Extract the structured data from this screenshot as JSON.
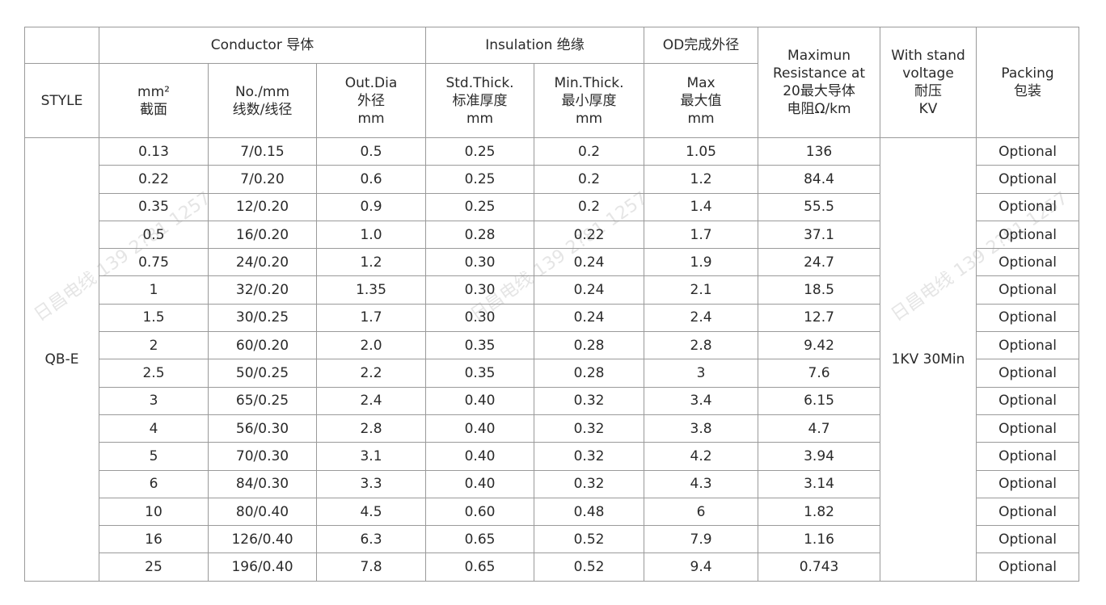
{
  "watermark": "日昌电线 139 2?81 1257",
  "header": {
    "style": "STYLE",
    "conductor": "Conductor 导体",
    "insulation": "Insulation 绝缘",
    "od": "OD完成外径",
    "resistance": "Maximun\nResistance at\n20最大导体\n电阻Ω/km",
    "voltage": "With stand\nvoltage\n耐压\nKV",
    "packing": "Packing\n包装",
    "area": "mm²\n截面",
    "strands": "No./mm\n线数/线径",
    "outdia": "Out.Dia\n外径\nmm",
    "std_thick": "Std.Thick.\n标准厚度\nmm",
    "min_thick": "Min.Thick.\n最小厚度\nmm",
    "od_max": "Max\n最大值\nmm"
  },
  "style_value": "QB-E",
  "voltage_value": "1KV 30Min",
  "rows": [
    [
      "0.13",
      "7/0.15",
      "0.5",
      "0.25",
      "0.2",
      "1.05",
      "136",
      "Optional"
    ],
    [
      "0.22",
      "7/0.20",
      "0.6",
      "0.25",
      "0.2",
      "1.2",
      "84.4",
      "Optional"
    ],
    [
      "0.35",
      "12/0.20",
      "0.9",
      "0.25",
      "0.2",
      "1.4",
      "55.5",
      "Optional"
    ],
    [
      "0.5",
      "16/0.20",
      "1.0",
      "0.28",
      "0.22",
      "1.7",
      "37.1",
      "Optional"
    ],
    [
      "0.75",
      "24/0.20",
      "1.2",
      "0.30",
      "0.24",
      "1.9",
      "24.7",
      "Optional"
    ],
    [
      "1",
      "32/0.20",
      "1.35",
      "0.30",
      "0.24",
      "2.1",
      "18.5",
      "Optional"
    ],
    [
      "1.5",
      "30/0.25",
      "1.7",
      "0.30",
      "0.24",
      "2.4",
      "12.7",
      "Optional"
    ],
    [
      "2",
      "60/0.20",
      "2.0",
      "0.35",
      "0.28",
      "2.8",
      "9.42",
      "Optional"
    ],
    [
      "2.5",
      "50/0.25",
      "2.2",
      "0.35",
      "0.28",
      "3",
      "7.6",
      "Optional"
    ],
    [
      "3",
      "65/0.25",
      "2.4",
      "0.40",
      "0.32",
      "3.4",
      "6.15",
      "Optional"
    ],
    [
      "4",
      "56/0.30",
      "2.8",
      "0.40",
      "0.32",
      "3.8",
      "4.7",
      "Optional"
    ],
    [
      "5",
      "70/0.30",
      "3.1",
      "0.40",
      "0.32",
      "4.2",
      "3.94",
      "Optional"
    ],
    [
      "6",
      "84/0.30",
      "3.3",
      "0.40",
      "0.32",
      "4.3",
      "3.14",
      "Optional"
    ],
    [
      "10",
      "80/0.40",
      "4.5",
      "0.60",
      "0.48",
      "6",
      "1.82",
      "Optional"
    ],
    [
      "16",
      "126/0.40",
      "6.3",
      "0.65",
      "0.52",
      "7.9",
      "1.16",
      "Optional"
    ],
    [
      "25",
      "196/0.40",
      "7.8",
      "0.65",
      "0.52",
      "9.4",
      "0.743",
      "Optional"
    ]
  ]
}
